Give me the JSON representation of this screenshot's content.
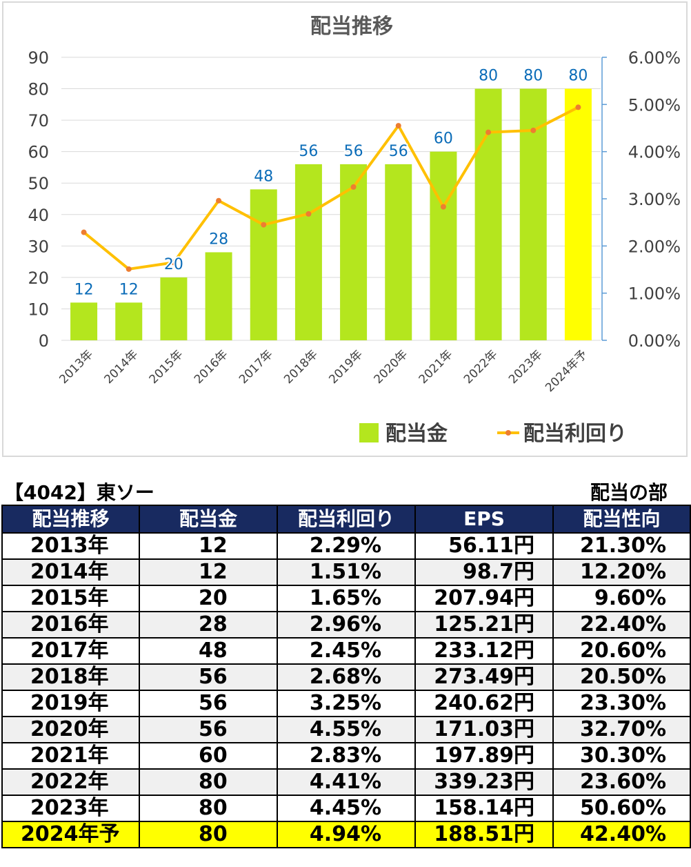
{
  "chart_data": {
    "type": "bar",
    "title": "配当推移",
    "categories": [
      "2013年",
      "2014年",
      "2015年",
      "2016年",
      "2017年",
      "2018年",
      "2019年",
      "2020年",
      "2021年",
      "2022年",
      "2023年",
      "2024年予"
    ],
    "series": [
      {
        "name": "配当金",
        "type": "bar",
        "axis": "left",
        "values": [
          12,
          12,
          20,
          28,
          48,
          56,
          56,
          56,
          60,
          80,
          80,
          80
        ],
        "color": "#b4e61e",
        "highlight_last_color": "#ffff00"
      },
      {
        "name": "配当利回り",
        "type": "line",
        "axis": "right",
        "values": [
          2.29,
          1.51,
          1.65,
          2.96,
          2.45,
          2.68,
          3.25,
          4.55,
          2.83,
          4.41,
          4.45,
          4.94
        ],
        "color": "#ffc000",
        "marker_color": "#ed7d31"
      }
    ],
    "y_left": {
      "min": 0,
      "max": 90,
      "ticks": [
        "0",
        "10",
        "20",
        "30",
        "40",
        "50",
        "60",
        "70",
        "80",
        "90"
      ]
    },
    "y_right": {
      "min": 0,
      "max": 6,
      "ticks": [
        "0.00%",
        "1.00%",
        "2.00%",
        "3.00%",
        "4.00%",
        "5.00%",
        "6.00%"
      ]
    },
    "data_labels": [
      "12",
      "12",
      "20",
      "28",
      "48",
      "56",
      "56",
      "56",
      "60",
      "80",
      "80",
      "80"
    ],
    "grid": true,
    "legend_position": "bottom-right"
  },
  "header": {
    "company": "【4042】東ソー",
    "section": "配当の部"
  },
  "table": {
    "columns": [
      "配当推移",
      "配当金",
      "配当利回り",
      "EPS",
      "配当性向"
    ],
    "rows": [
      [
        "2013年",
        "12",
        "2.29%",
        "56.11円",
        "21.30%"
      ],
      [
        "2014年",
        "12",
        "1.51%",
        "98.7円",
        "12.20%"
      ],
      [
        "2015年",
        "20",
        "1.65%",
        "207.94円",
        "9.60%"
      ],
      [
        "2016年",
        "28",
        "2.96%",
        "125.21円",
        "22.40%"
      ],
      [
        "2017年",
        "48",
        "2.45%",
        "233.12円",
        "20.60%"
      ],
      [
        "2018年",
        "56",
        "2.68%",
        "273.49円",
        "20.50%"
      ],
      [
        "2019年",
        "56",
        "3.25%",
        "240.62円",
        "23.30%"
      ],
      [
        "2020年",
        "56",
        "4.55%",
        "171.03円",
        "32.70%"
      ],
      [
        "2021年",
        "60",
        "2.83%",
        "197.89円",
        "30.30%"
      ],
      [
        "2022年",
        "80",
        "4.41%",
        "339.23円",
        "23.60%"
      ],
      [
        "2023年",
        "80",
        "4.45%",
        "158.14円",
        "50.60%"
      ],
      [
        "2024年予",
        "80",
        "4.94%",
        "188.51円",
        "42.40%"
      ]
    ],
    "highlight_color": "#ffff00",
    "header_color": "#182a60"
  }
}
